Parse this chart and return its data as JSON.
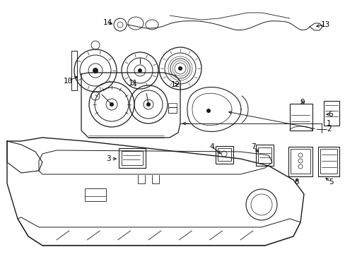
{
  "background_color": "#ffffff",
  "fig_width": 4.89,
  "fig_height": 3.6,
  "dpi": 100,
  "line_color": "#1a1a1a",
  "text_color": "#000000",
  "font_size": 7.5
}
